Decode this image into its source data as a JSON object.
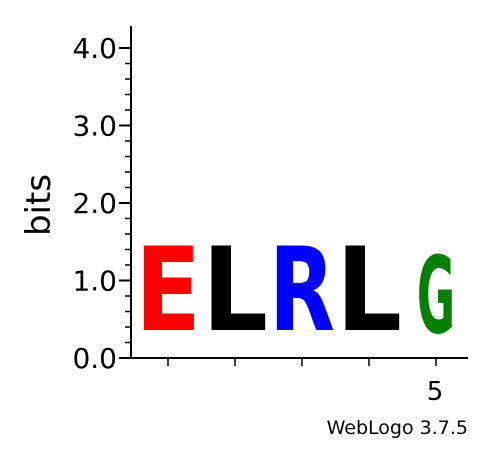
{
  "chart_data": {
    "type": "sequence-logo",
    "ylabel": "bits",
    "ylim": [
      0,
      4.0
    ],
    "y_ticks": [
      {
        "value": 0.0,
        "label": "0.0"
      },
      {
        "value": 1.0,
        "label": "1.0"
      },
      {
        "value": 2.0,
        "label": "2.0"
      },
      {
        "value": 3.0,
        "label": "3.0"
      },
      {
        "value": 4.0,
        "label": "4.0"
      }
    ],
    "y_minor_step": 0.2,
    "positions": [
      1,
      2,
      3,
      4,
      5
    ],
    "x_labeled_ticks": [
      {
        "position": 5,
        "label": "5"
      }
    ],
    "stacks": [
      {
        "position": 1,
        "letter": "E",
        "bits": 1.75,
        "color": "#ff0000"
      },
      {
        "position": 2,
        "letter": "L",
        "bits": 1.75,
        "color": "#000000"
      },
      {
        "position": 3,
        "letter": "R",
        "bits": 1.75,
        "color": "#0000ff"
      },
      {
        "position": 4,
        "letter": "L",
        "bits": 1.75,
        "color": "#000000"
      },
      {
        "position": 5,
        "letter": "G",
        "bits": 1.6,
        "color": "#008000"
      }
    ],
    "credit": "WebLogo 3.7.5"
  }
}
